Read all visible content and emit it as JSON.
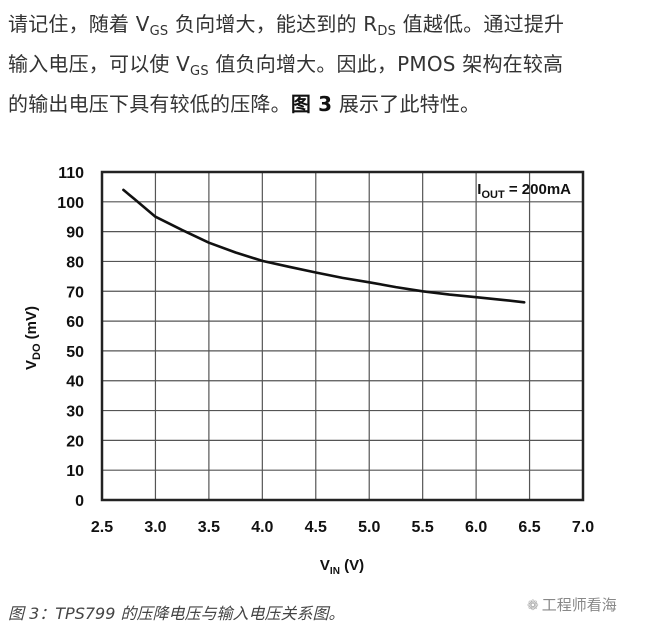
{
  "paragraph": {
    "line1": {
      "a": "请记住，随着 V",
      "a_sub": "GS",
      "b": " 负向增大，能达到的 R",
      "b_sub": "DS",
      "c": " 值越低。通过提升"
    },
    "line2": {
      "a": "输入电压，可以使 V",
      "a_sub": "GS",
      "b": " 值负向增大。因此，PMOS 架构在较高"
    },
    "line3": {
      "a": "的输出电压下具有较低的压降。",
      "bold": "图 3",
      "b": " 展示了此特性。"
    }
  },
  "chart_data": {
    "type": "line",
    "title": "",
    "annotation": {
      "main": "I",
      "sub": "OUT",
      "rest": " = 200mA"
    },
    "xlabel": {
      "main": "V",
      "sub": "IN",
      "rest": " (V)"
    },
    "ylabel": {
      "main": "V",
      "sub": "DO",
      "rest": " (mV)"
    },
    "xlim": [
      2.5,
      7.0
    ],
    "ylim": [
      0,
      110
    ],
    "x_ticks": [
      "2.5",
      "3.0",
      "3.5",
      "4.0",
      "4.5",
      "5.0",
      "5.5",
      "6.0",
      "6.5",
      "7.0"
    ],
    "y_ticks": [
      "0",
      "10",
      "20",
      "30",
      "40",
      "50",
      "60",
      "70",
      "80",
      "90",
      "100",
      "110"
    ],
    "grid": true,
    "legend": "none",
    "series": [
      {
        "name": "IOUT = 200mA",
        "x": [
          2.7,
          2.8,
          3.0,
          3.25,
          3.5,
          3.75,
          4.0,
          4.25,
          4.5,
          4.75,
          5.0,
          5.25,
          5.5,
          5.75,
          6.0,
          6.25,
          6.45
        ],
        "y": [
          104,
          101,
          95,
          90.5,
          86.3,
          83,
          80.2,
          78.2,
          76.3,
          74.5,
          73,
          71.4,
          70,
          68.9,
          68,
          67.1,
          66.3
        ]
      }
    ],
    "line_color": "#111111"
  },
  "caption": "图 3：TPS799 的压降电压与输入电压关系图。",
  "watermark": {
    "icon": "wechat-icon",
    "glyph": "❁",
    "text": "工程师看海"
  }
}
